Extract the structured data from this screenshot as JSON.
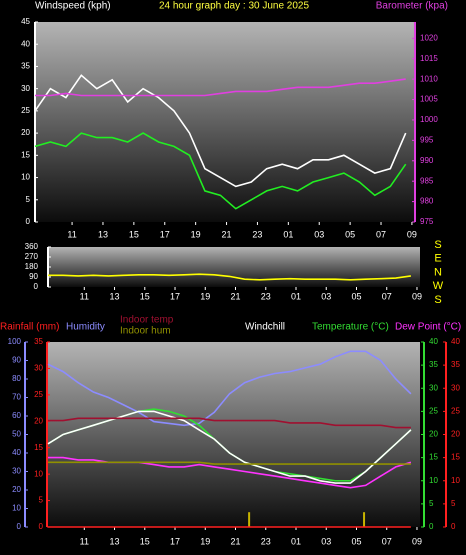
{
  "chart_data": [
    {
      "type": "line",
      "title": "24 hour graph day : 30 June 2025",
      "ylabel": "Windspeed (kph)",
      "y2label": "Barometer (kpa)",
      "x": [
        0,
        1,
        2,
        3,
        4,
        5,
        6,
        7,
        8,
        9,
        10,
        11,
        12,
        13,
        14,
        15,
        16,
        17,
        18,
        19,
        20,
        21,
        22,
        23,
        24
      ],
      "xlim": [
        0,
        24.6
      ],
      "xticks": [
        {
          "value": 2.4,
          "label": "11"
        },
        {
          "value": 4.4,
          "label": "13"
        },
        {
          "value": 6.4,
          "label": "15"
        },
        {
          "value": 8.4,
          "label": "17"
        },
        {
          "value": 10.4,
          "label": "19"
        },
        {
          "value": 12.4,
          "label": "21"
        },
        {
          "value": 14.4,
          "label": "23"
        },
        {
          "value": 16.4,
          "label": "01"
        },
        {
          "value": 18.4,
          "label": "03"
        },
        {
          "value": 20.4,
          "label": "05"
        },
        {
          "value": 22.4,
          "label": "07"
        },
        {
          "value": 24.4,
          "label": "09"
        }
      ],
      "ylim": [
        0,
        45
      ],
      "yticks": [
        0,
        5,
        10,
        15,
        20,
        25,
        30,
        35,
        40,
        45
      ],
      "y2lim": [
        975,
        1024
      ],
      "y2ticks": [
        975,
        980,
        985,
        990,
        995,
        1000,
        1005,
        1010,
        1015,
        1020
      ],
      "series": [
        {
          "color": "#ffffff",
          "values": [
            25,
            30,
            28,
            33,
            30,
            32,
            27,
            30,
            28,
            25,
            20,
            12,
            10,
            8,
            9,
            12,
            13,
            12,
            14,
            14,
            15,
            13,
            11,
            12,
            20
          ]
        },
        {
          "color": "#22ee22",
          "values": [
            17,
            18,
            17,
            20,
            19,
            19,
            18,
            20,
            18,
            17,
            15,
            7,
            6,
            3,
            5,
            7,
            8,
            7,
            9,
            10,
            11,
            9,
            6,
            8,
            13
          ]
        },
        {
          "color": "#e040e0",
          "axis": "y2",
          "values": [
            1006,
            1006,
            1006.5,
            1006,
            1006,
            1006,
            1006,
            1006,
            1006,
            1006,
            1006,
            1006,
            1006.5,
            1007,
            1007,
            1007,
            1007.5,
            1008,
            1008,
            1008,
            1008.5,
            1009,
            1009,
            1009.5,
            1010
          ]
        }
      ]
    },
    {
      "type": "line",
      "x": [
        0,
        1,
        2,
        3,
        4,
        5,
        6,
        7,
        8,
        9,
        10,
        11,
        12,
        13,
        14,
        15,
        16,
        17,
        18,
        19,
        20,
        21,
        22,
        23,
        24
      ],
      "xlim": [
        0,
        24.6
      ],
      "xticks": [
        {
          "value": 2.4,
          "label": "11"
        },
        {
          "value": 4.4,
          "label": "13"
        },
        {
          "value": 6.4,
          "label": "15"
        },
        {
          "value": 8.4,
          "label": "17"
        },
        {
          "value": 10.4,
          "label": "19"
        },
        {
          "value": 12.4,
          "label": "21"
        },
        {
          "value": 14.4,
          "label": "23"
        },
        {
          "value": 16.4,
          "label": "01"
        },
        {
          "value": 18.4,
          "label": "03"
        },
        {
          "value": 20.4,
          "label": "05"
        },
        {
          "value": 22.4,
          "label": "07"
        },
        {
          "value": 24.4,
          "label": "09"
        }
      ],
      "ylim": [
        0,
        360
      ],
      "yticks": [
        0,
        90,
        180,
        270,
        360
      ],
      "compass_labels": [
        "S",
        "E",
        "N",
        "W",
        "S"
      ],
      "series": [
        {
          "color": "#ffff00",
          "values": [
            105,
            105,
            100,
            105,
            100,
            105,
            110,
            110,
            105,
            110,
            115,
            110,
            95,
            70,
            65,
            70,
            75,
            70,
            70,
            70,
            65,
            70,
            75,
            80,
            100
          ]
        }
      ]
    },
    {
      "type": "line",
      "x": [
        0,
        1,
        2,
        3,
        4,
        5,
        6,
        7,
        8,
        9,
        10,
        11,
        12,
        13,
        14,
        15,
        16,
        17,
        18,
        19,
        20,
        21,
        22,
        23,
        24
      ],
      "xlim": [
        0,
        24.6
      ],
      "xticks": [
        {
          "value": 2.4,
          "label": "11"
        },
        {
          "value": 4.4,
          "label": "13"
        },
        {
          "value": 6.4,
          "label": "15"
        },
        {
          "value": 8.4,
          "label": "17"
        },
        {
          "value": 10.4,
          "label": "19"
        },
        {
          "value": 12.4,
          "label": "21"
        },
        {
          "value": 14.4,
          "label": "23"
        },
        {
          "value": 16.4,
          "label": "01"
        },
        {
          "value": 18.4,
          "label": "03"
        },
        {
          "value": 20.4,
          "label": "05"
        },
        {
          "value": 22.4,
          "label": "07"
        },
        {
          "value": 24.4,
          "label": "09"
        }
      ],
      "ylim": [
        0,
        100
      ],
      "yticks": [
        0,
        10,
        20,
        30,
        40,
        50,
        60,
        70,
        80,
        90,
        100
      ],
      "y2lim": [
        0,
        40
      ],
      "y2ticks": [
        0,
        5,
        10,
        15,
        20,
        25,
        30,
        35,
        40
      ],
      "y3lim": [
        0,
        35
      ],
      "y3ticks": [
        0,
        5,
        10,
        15,
        20,
        25,
        30,
        35
      ],
      "y4lim": [
        0,
        40
      ],
      "y4ticks": [
        0,
        5,
        10,
        15,
        20,
        25,
        30,
        35,
        40
      ],
      "series": [
        {
          "name": "Humidity",
          "color": "#8c8cff",
          "axis": "y",
          "values": [
            88,
            84,
            78,
            73,
            70,
            66,
            62,
            57,
            56,
            55,
            56,
            62,
            72,
            78,
            81,
            83,
            84,
            86,
            88,
            92,
            95,
            95,
            90,
            80,
            72
          ]
        },
        {
          "name": "Temperature (°C)",
          "color": "#33dd33",
          "axis": "y2",
          "values": [
            18,
            20,
            21,
            22,
            23,
            24,
            25,
            25.5,
            25,
            24,
            22,
            19,
            16,
            14,
            13,
            12,
            11.5,
            11,
            10.5,
            10,
            10,
            12,
            15,
            18,
            21
          ]
        },
        {
          "name": "Dew Point (°C)",
          "color": "#ff33ff",
          "axis": "y4",
          "values": [
            15,
            15,
            14.5,
            14.5,
            14,
            14,
            14,
            13.5,
            13,
            13,
            13.5,
            13,
            12.5,
            12,
            11.5,
            11,
            10.5,
            10,
            9.5,
            9,
            8.5,
            9,
            11,
            13,
            14
          ]
        },
        {
          "name": "Windchill",
          "color": "#ffffff",
          "axis": "y2",
          "values": [
            18,
            20,
            21,
            22,
            23,
            24,
            25,
            25,
            24,
            23,
            21,
            19,
            16,
            14,
            13,
            12,
            11,
            11,
            10,
            9.5,
            9.5,
            12,
            15,
            18,
            21
          ]
        },
        {
          "name": "Indoor temp",
          "color": "#a01030",
          "axis": "y2",
          "values": [
            23,
            23,
            23.5,
            23.5,
            23.5,
            23.5,
            23.5,
            23.5,
            23.5,
            23.5,
            23.5,
            23,
            23,
            23,
            23,
            23,
            22.5,
            22.5,
            22.5,
            22,
            22,
            22,
            22,
            21.5,
            21.5
          ]
        },
        {
          "name": "Indoor hum",
          "color": "#909000",
          "axis": "y",
          "values": [
            35,
            35,
            35,
            35,
            35,
            35,
            35,
            35,
            35,
            35,
            35,
            34,
            34,
            34,
            34,
            34,
            34,
            34,
            34,
            34,
            34,
            34,
            34,
            34,
            34
          ]
        },
        {
          "name": "Rainfall (mm)",
          "color": "#ff2020",
          "axis": "y3",
          "values": [
            0,
            0,
            0,
            0,
            0,
            0,
            0,
            0,
            0,
            0,
            0,
            0,
            0,
            0,
            0,
            0,
            0,
            0,
            0,
            0,
            0,
            0,
            0,
            0,
            0
          ]
        }
      ],
      "bars": {
        "color": "#c8b400",
        "axis": "y3",
        "x": [
          13.3,
          20.9
        ],
        "values": [
          2.8,
          2.8
        ]
      }
    }
  ]
}
